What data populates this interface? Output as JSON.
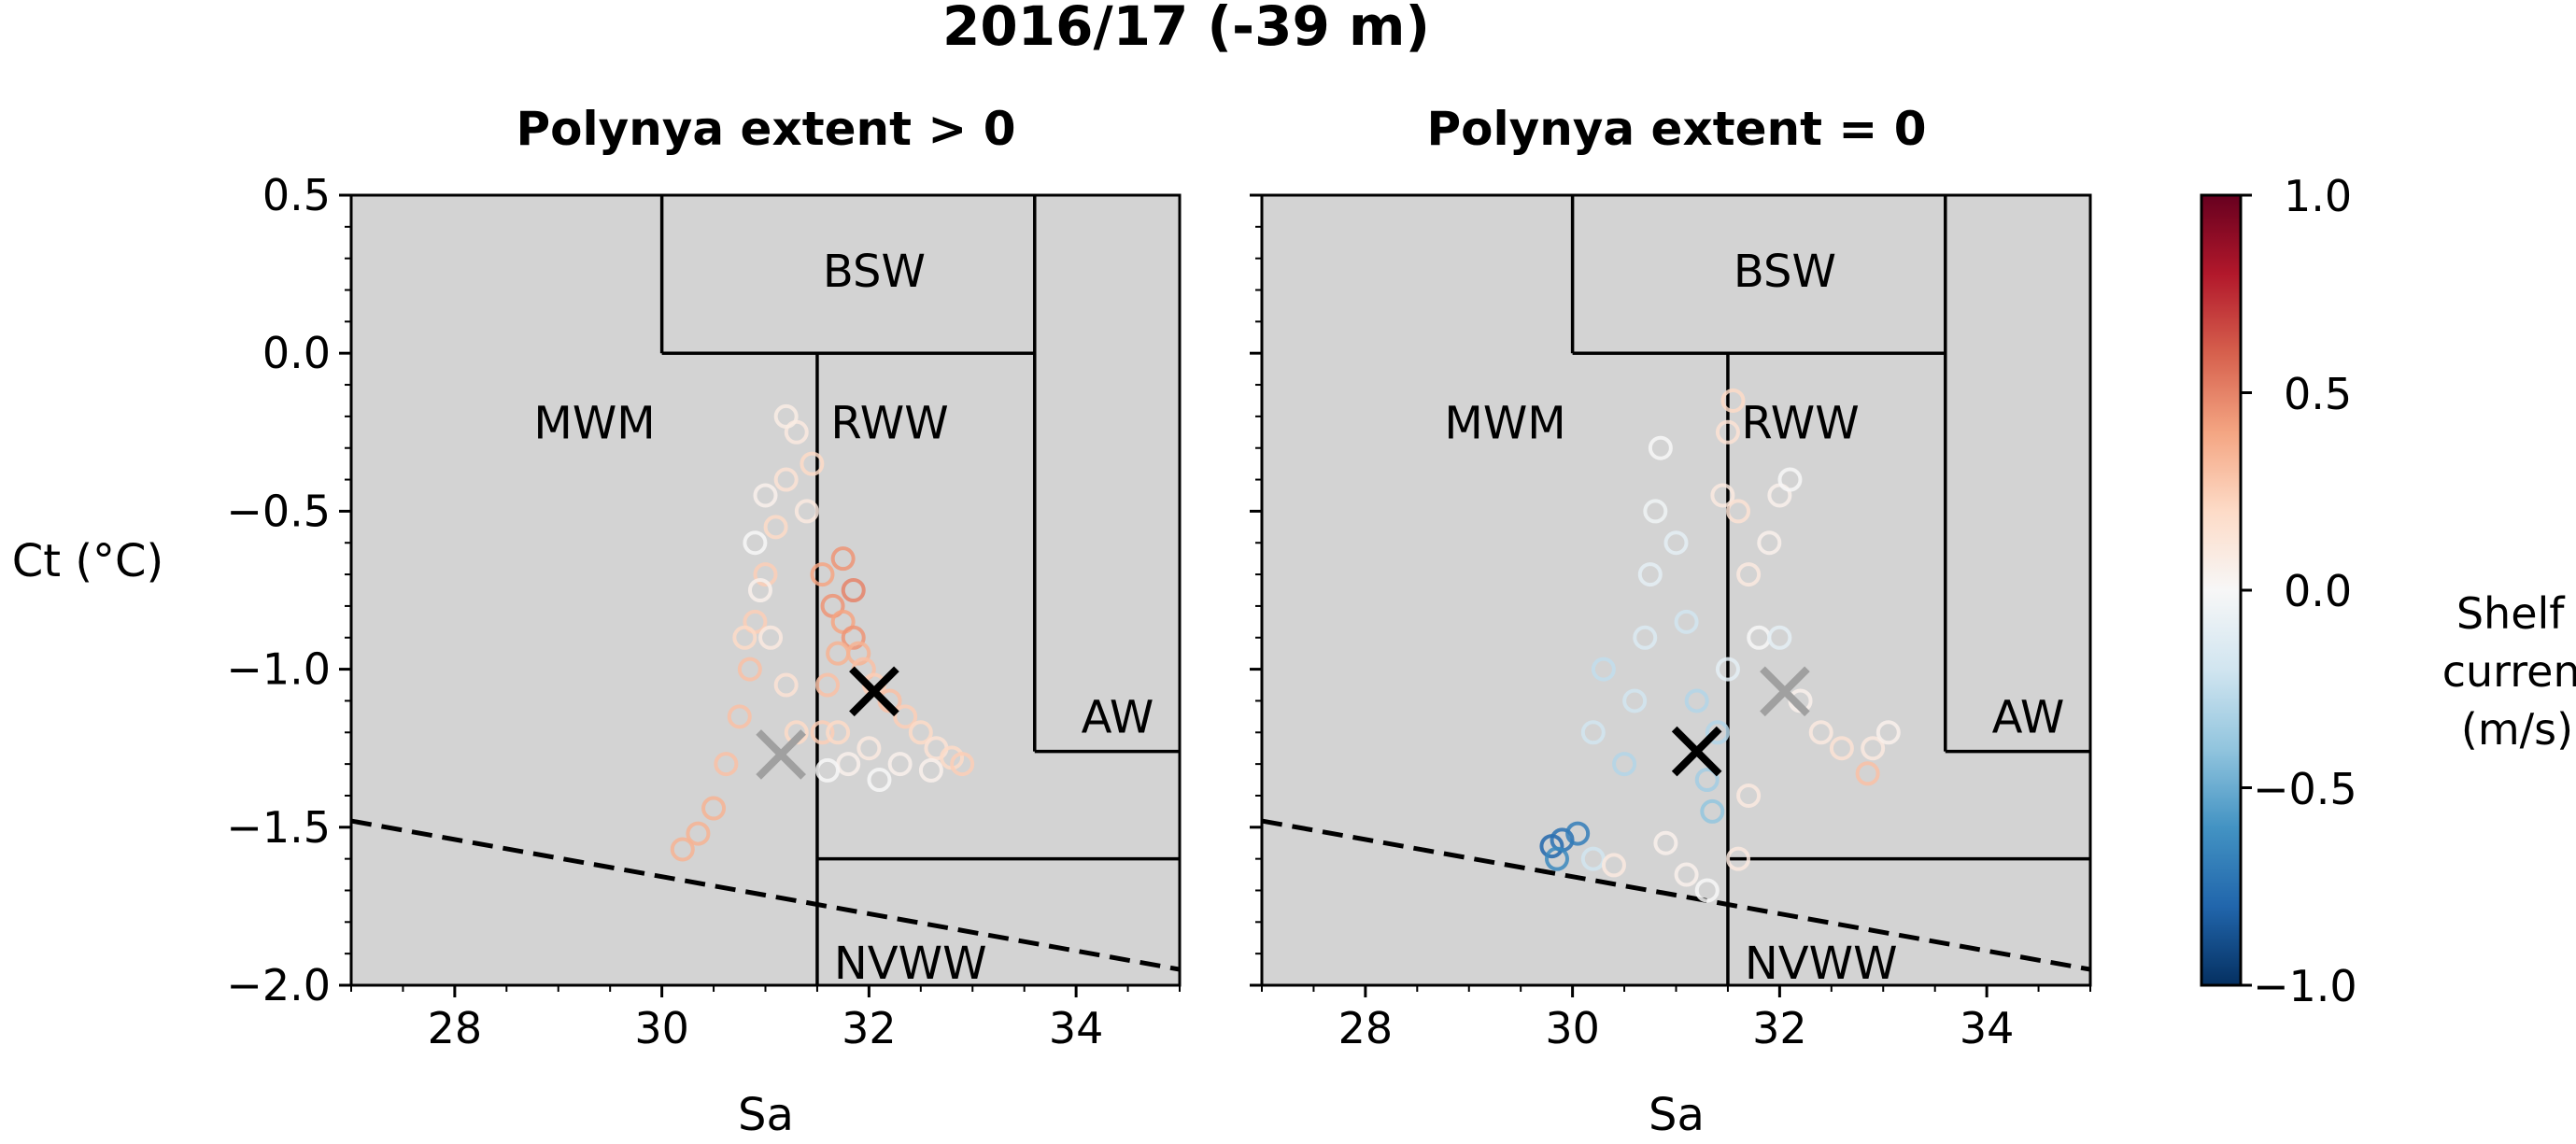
{
  "suptitle": "2016/17 (-39 m)",
  "colorbar": {
    "label_lines": [
      "Shelf",
      "current",
      "(m/s)"
    ],
    "ticks": [
      "1.0",
      "0.5",
      "0.0",
      "−0.5",
      "−1.0"
    ],
    "range": [
      -1.0,
      1.0
    ],
    "colormap": [
      "#053061",
      "#2166ac",
      "#4393c3",
      "#92c5de",
      "#d1e5f0",
      "#f7f7f7",
      "#fddbc7",
      "#f4a582",
      "#d6604d",
      "#b2182b",
      "#67001f"
    ]
  },
  "axes": {
    "xlabel": "Sa",
    "ylabel": "Ct (°C)",
    "xticks": [
      "28",
      "30",
      "32",
      "34"
    ],
    "yticks": [
      "0.5",
      "0.0",
      "−0.5",
      "−1.0",
      "−1.5",
      "−2.0"
    ],
    "xlim": [
      27,
      35
    ],
    "ylim": [
      -2.0,
      0.5
    ]
  },
  "regions": [
    "BSW",
    "MWM",
    "RWW",
    "AW",
    "NVWW"
  ],
  "panels": [
    {
      "title": "Polynya extent > 0"
    },
    {
      "title": "Polynya extent = 0"
    }
  ],
  "colors": {
    "background": "#d3d3d3",
    "black_marker": "#000000",
    "gray_marker": "#a0a0a0"
  },
  "chart_data": [
    {
      "type": "scatter",
      "title": "Polynya extent > 0",
      "xlabel": "Sa",
      "ylabel": "Ct (°C)",
      "xlim": [
        27,
        35
      ],
      "ylim": [
        -2.0,
        0.5
      ],
      "freezing_line": {
        "style": "dashed",
        "points": [
          [
            27,
            -1.48
          ],
          [
            35,
            -1.95
          ]
        ]
      },
      "water_mass_boundaries": [
        {
          "name": "BSW",
          "x": [
            30.0,
            33.6
          ],
          "y": [
            0.0,
            0.5
          ]
        },
        {
          "name": "RWW",
          "x": [
            31.5,
            33.6
          ],
          "y": [
            -1.6,
            0.0
          ]
        },
        {
          "name": "AW",
          "x": [
            33.6,
            35.0
          ],
          "y": [
            -1.26,
            0.5
          ]
        },
        {
          "name": "NVWW",
          "x": [
            31.5,
            35.0
          ],
          "y": [
            -2.0,
            -1.6
          ]
        },
        {
          "name": "MWM",
          "x": [
            27.0,
            31.5
          ],
          "y": [
            -2.0,
            0.0
          ]
        }
      ],
      "series": [
        {
          "color_by": "shelf_current",
          "points": [
            {
              "x": 30.2,
              "y": -1.57,
              "c": 0.35
            },
            {
              "x": 30.35,
              "y": -1.52,
              "c": 0.35
            },
            {
              "x": 30.5,
              "y": -1.44,
              "c": 0.35
            },
            {
              "x": 30.62,
              "y": -1.3,
              "c": 0.3
            },
            {
              "x": 30.75,
              "y": -1.15,
              "c": 0.3
            },
            {
              "x": 30.85,
              "y": -1.0,
              "c": 0.3
            },
            {
              "x": 30.9,
              "y": -0.85,
              "c": 0.25
            },
            {
              "x": 31.0,
              "y": -0.7,
              "c": 0.25
            },
            {
              "x": 31.1,
              "y": -0.55,
              "c": 0.2
            },
            {
              "x": 31.2,
              "y": -0.4,
              "c": 0.15
            },
            {
              "x": 31.3,
              "y": -0.25,
              "c": 0.1
            },
            {
              "x": 31.2,
              "y": -0.2,
              "c": 0.08
            },
            {
              "x": 31.0,
              "y": -0.45,
              "c": 0.05
            },
            {
              "x": 30.9,
              "y": -0.6,
              "c": 0.0
            },
            {
              "x": 30.95,
              "y": -0.75,
              "c": 0.05
            },
            {
              "x": 31.05,
              "y": -0.9,
              "c": 0.1
            },
            {
              "x": 31.2,
              "y": -1.05,
              "c": 0.15
            },
            {
              "x": 31.3,
              "y": -1.2,
              "c": 0.2
            },
            {
              "x": 31.4,
              "y": -0.5,
              "c": 0.1
            },
            {
              "x": 31.55,
              "y": -0.7,
              "c": 0.4
            },
            {
              "x": 31.65,
              "y": -0.8,
              "c": 0.45
            },
            {
              "x": 31.75,
              "y": -0.85,
              "c": 0.4
            },
            {
              "x": 31.85,
              "y": -0.9,
              "c": 0.45
            },
            {
              "x": 31.9,
              "y": -0.95,
              "c": 0.35
            },
            {
              "x": 31.7,
              "y": -0.95,
              "c": 0.35
            },
            {
              "x": 31.6,
              "y": -1.05,
              "c": 0.3
            },
            {
              "x": 31.55,
              "y": -1.2,
              "c": 0.25
            },
            {
              "x": 31.7,
              "y": -1.2,
              "c": 0.2
            },
            {
              "x": 31.95,
              "y": -1.0,
              "c": 0.3
            },
            {
              "x": 32.05,
              "y": -1.05,
              "c": 0.25
            },
            {
              "x": 32.2,
              "y": -1.1,
              "c": 0.3
            },
            {
              "x": 32.35,
              "y": -1.15,
              "c": 0.25
            },
            {
              "x": 32.5,
              "y": -1.2,
              "c": 0.2
            },
            {
              "x": 32.65,
              "y": -1.25,
              "c": 0.15
            },
            {
              "x": 32.8,
              "y": -1.28,
              "c": 0.2
            },
            {
              "x": 32.9,
              "y": -1.3,
              "c": 0.25
            },
            {
              "x": 32.6,
              "y": -1.32,
              "c": 0.05
            },
            {
              "x": 32.3,
              "y": -1.3,
              "c": 0.05
            },
            {
              "x": 32.0,
              "y": -1.25,
              "c": 0.1
            },
            {
              "x": 31.8,
              "y": -1.3,
              "c": 0.05
            },
            {
              "x": 31.6,
              "y": -1.32,
              "c": 0.0
            },
            {
              "x": 32.1,
              "y": -1.35,
              "c": 0.0
            },
            {
              "x": 31.75,
              "y": -0.65,
              "c": 0.45
            },
            {
              "x": 31.85,
              "y": -0.75,
              "c": 0.5
            },
            {
              "x": 31.45,
              "y": -0.35,
              "c": 0.2
            },
            {
              "x": 30.8,
              "y": -0.9,
              "c": 0.2
            }
          ]
        },
        {
          "name": "",
          "marker": "x",
          "color": "#000000",
          "points": [
            {
              "x": 32.05,
              "y": -1.07
            }
          ]
        },
        {
          "name": "",
          "marker": "x",
          "color": "#a0a0a0",
          "points": [
            {
              "x": 31.15,
              "y": -1.27
            }
          ]
        }
      ]
    },
    {
      "type": "scatter",
      "title": "Polynya extent = 0",
      "xlabel": "Sa",
      "ylabel": "Ct (°C)",
      "xlim": [
        27,
        35
      ],
      "ylim": [
        -2.0,
        0.5
      ],
      "freezing_line": {
        "style": "dashed",
        "points": [
          [
            27,
            -1.48
          ],
          [
            35,
            -1.95
          ]
        ]
      },
      "water_mass_boundaries": [
        {
          "name": "BSW",
          "x": [
            30.0,
            33.6
          ],
          "y": [
            0.0,
            0.5
          ]
        },
        {
          "name": "RWW",
          "x": [
            31.5,
            33.6
          ],
          "y": [
            -1.6,
            0.0
          ]
        },
        {
          "name": "AW",
          "x": [
            33.6,
            35.0
          ],
          "y": [
            -1.26,
            0.5
          ]
        },
        {
          "name": "NVWW",
          "x": [
            31.5,
            35.0
          ],
          "y": [
            -2.0,
            -1.6
          ]
        },
        {
          "name": "MWM",
          "x": [
            27.0,
            31.5
          ],
          "y": [
            -2.0,
            0.0
          ]
        }
      ],
      "series": [
        {
          "color_by": "shelf_current",
          "points": [
            {
              "x": 29.8,
              "y": -1.56,
              "c": -0.8
            },
            {
              "x": 29.9,
              "y": -1.54,
              "c": -0.75
            },
            {
              "x": 30.05,
              "y": -1.52,
              "c": -0.7
            },
            {
              "x": 29.85,
              "y": -1.6,
              "c": -0.65
            },
            {
              "x": 30.2,
              "y": -1.6,
              "c": -0.2
            },
            {
              "x": 30.4,
              "y": -1.62,
              "c": 0.1
            },
            {
              "x": 30.2,
              "y": -1.2,
              "c": -0.2
            },
            {
              "x": 30.3,
              "y": -1.0,
              "c": -0.25
            },
            {
              "x": 30.5,
              "y": -1.3,
              "c": -0.3
            },
            {
              "x": 30.6,
              "y": -1.1,
              "c": -0.2
            },
            {
              "x": 30.7,
              "y": -0.9,
              "c": -0.15
            },
            {
              "x": 30.75,
              "y": -0.7,
              "c": -0.1
            },
            {
              "x": 30.8,
              "y": -0.5,
              "c": -0.05
            },
            {
              "x": 30.85,
              "y": -0.3,
              "c": 0.0
            },
            {
              "x": 31.0,
              "y": -0.6,
              "c": -0.1
            },
            {
              "x": 31.1,
              "y": -0.85,
              "c": -0.2
            },
            {
              "x": 31.2,
              "y": -1.1,
              "c": -0.3
            },
            {
              "x": 31.3,
              "y": -1.35,
              "c": -0.35
            },
            {
              "x": 31.35,
              "y": -1.45,
              "c": -0.4
            },
            {
              "x": 31.45,
              "y": -0.45,
              "c": 0.1
            },
            {
              "x": 31.5,
              "y": -0.25,
              "c": 0.15
            },
            {
              "x": 31.55,
              "y": -0.15,
              "c": 0.2
            },
            {
              "x": 31.6,
              "y": -0.5,
              "c": 0.15
            },
            {
              "x": 31.7,
              "y": -0.7,
              "c": 0.1
            },
            {
              "x": 31.8,
              "y": -0.9,
              "c": 0.0
            },
            {
              "x": 31.9,
              "y": -0.6,
              "c": 0.05
            },
            {
              "x": 32.0,
              "y": -0.45,
              "c": 0.05
            },
            {
              "x": 32.1,
              "y": -0.4,
              "c": 0.0
            },
            {
              "x": 32.0,
              "y": -0.9,
              "c": -0.1
            },
            {
              "x": 32.2,
              "y": -1.1,
              "c": 0.05
            },
            {
              "x": 32.4,
              "y": -1.2,
              "c": 0.1
            },
            {
              "x": 32.6,
              "y": -1.25,
              "c": 0.15
            },
            {
              "x": 32.9,
              "y": -1.25,
              "c": 0.1
            },
            {
              "x": 33.05,
              "y": -1.2,
              "c": 0.05
            },
            {
              "x": 32.85,
              "y": -1.33,
              "c": 0.3
            },
            {
              "x": 31.6,
              "y": -1.6,
              "c": 0.1
            },
            {
              "x": 31.3,
              "y": -1.7,
              "c": 0.0
            },
            {
              "x": 31.1,
              "y": -1.65,
              "c": 0.05
            },
            {
              "x": 30.9,
              "y": -1.55,
              "c": 0.05
            },
            {
              "x": 31.4,
              "y": -1.2,
              "c": -0.3
            },
            {
              "x": 31.7,
              "y": -1.4,
              "c": 0.1
            },
            {
              "x": 31.5,
              "y": -1.0,
              "c": -0.1
            }
          ]
        },
        {
          "name": "",
          "marker": "x",
          "color": "#000000",
          "points": [
            {
              "x": 31.2,
              "y": -1.26
            }
          ]
        },
        {
          "name": "",
          "marker": "x",
          "color": "#a0a0a0",
          "points": [
            {
              "x": 32.05,
              "y": -1.07
            }
          ]
        }
      ]
    }
  ]
}
